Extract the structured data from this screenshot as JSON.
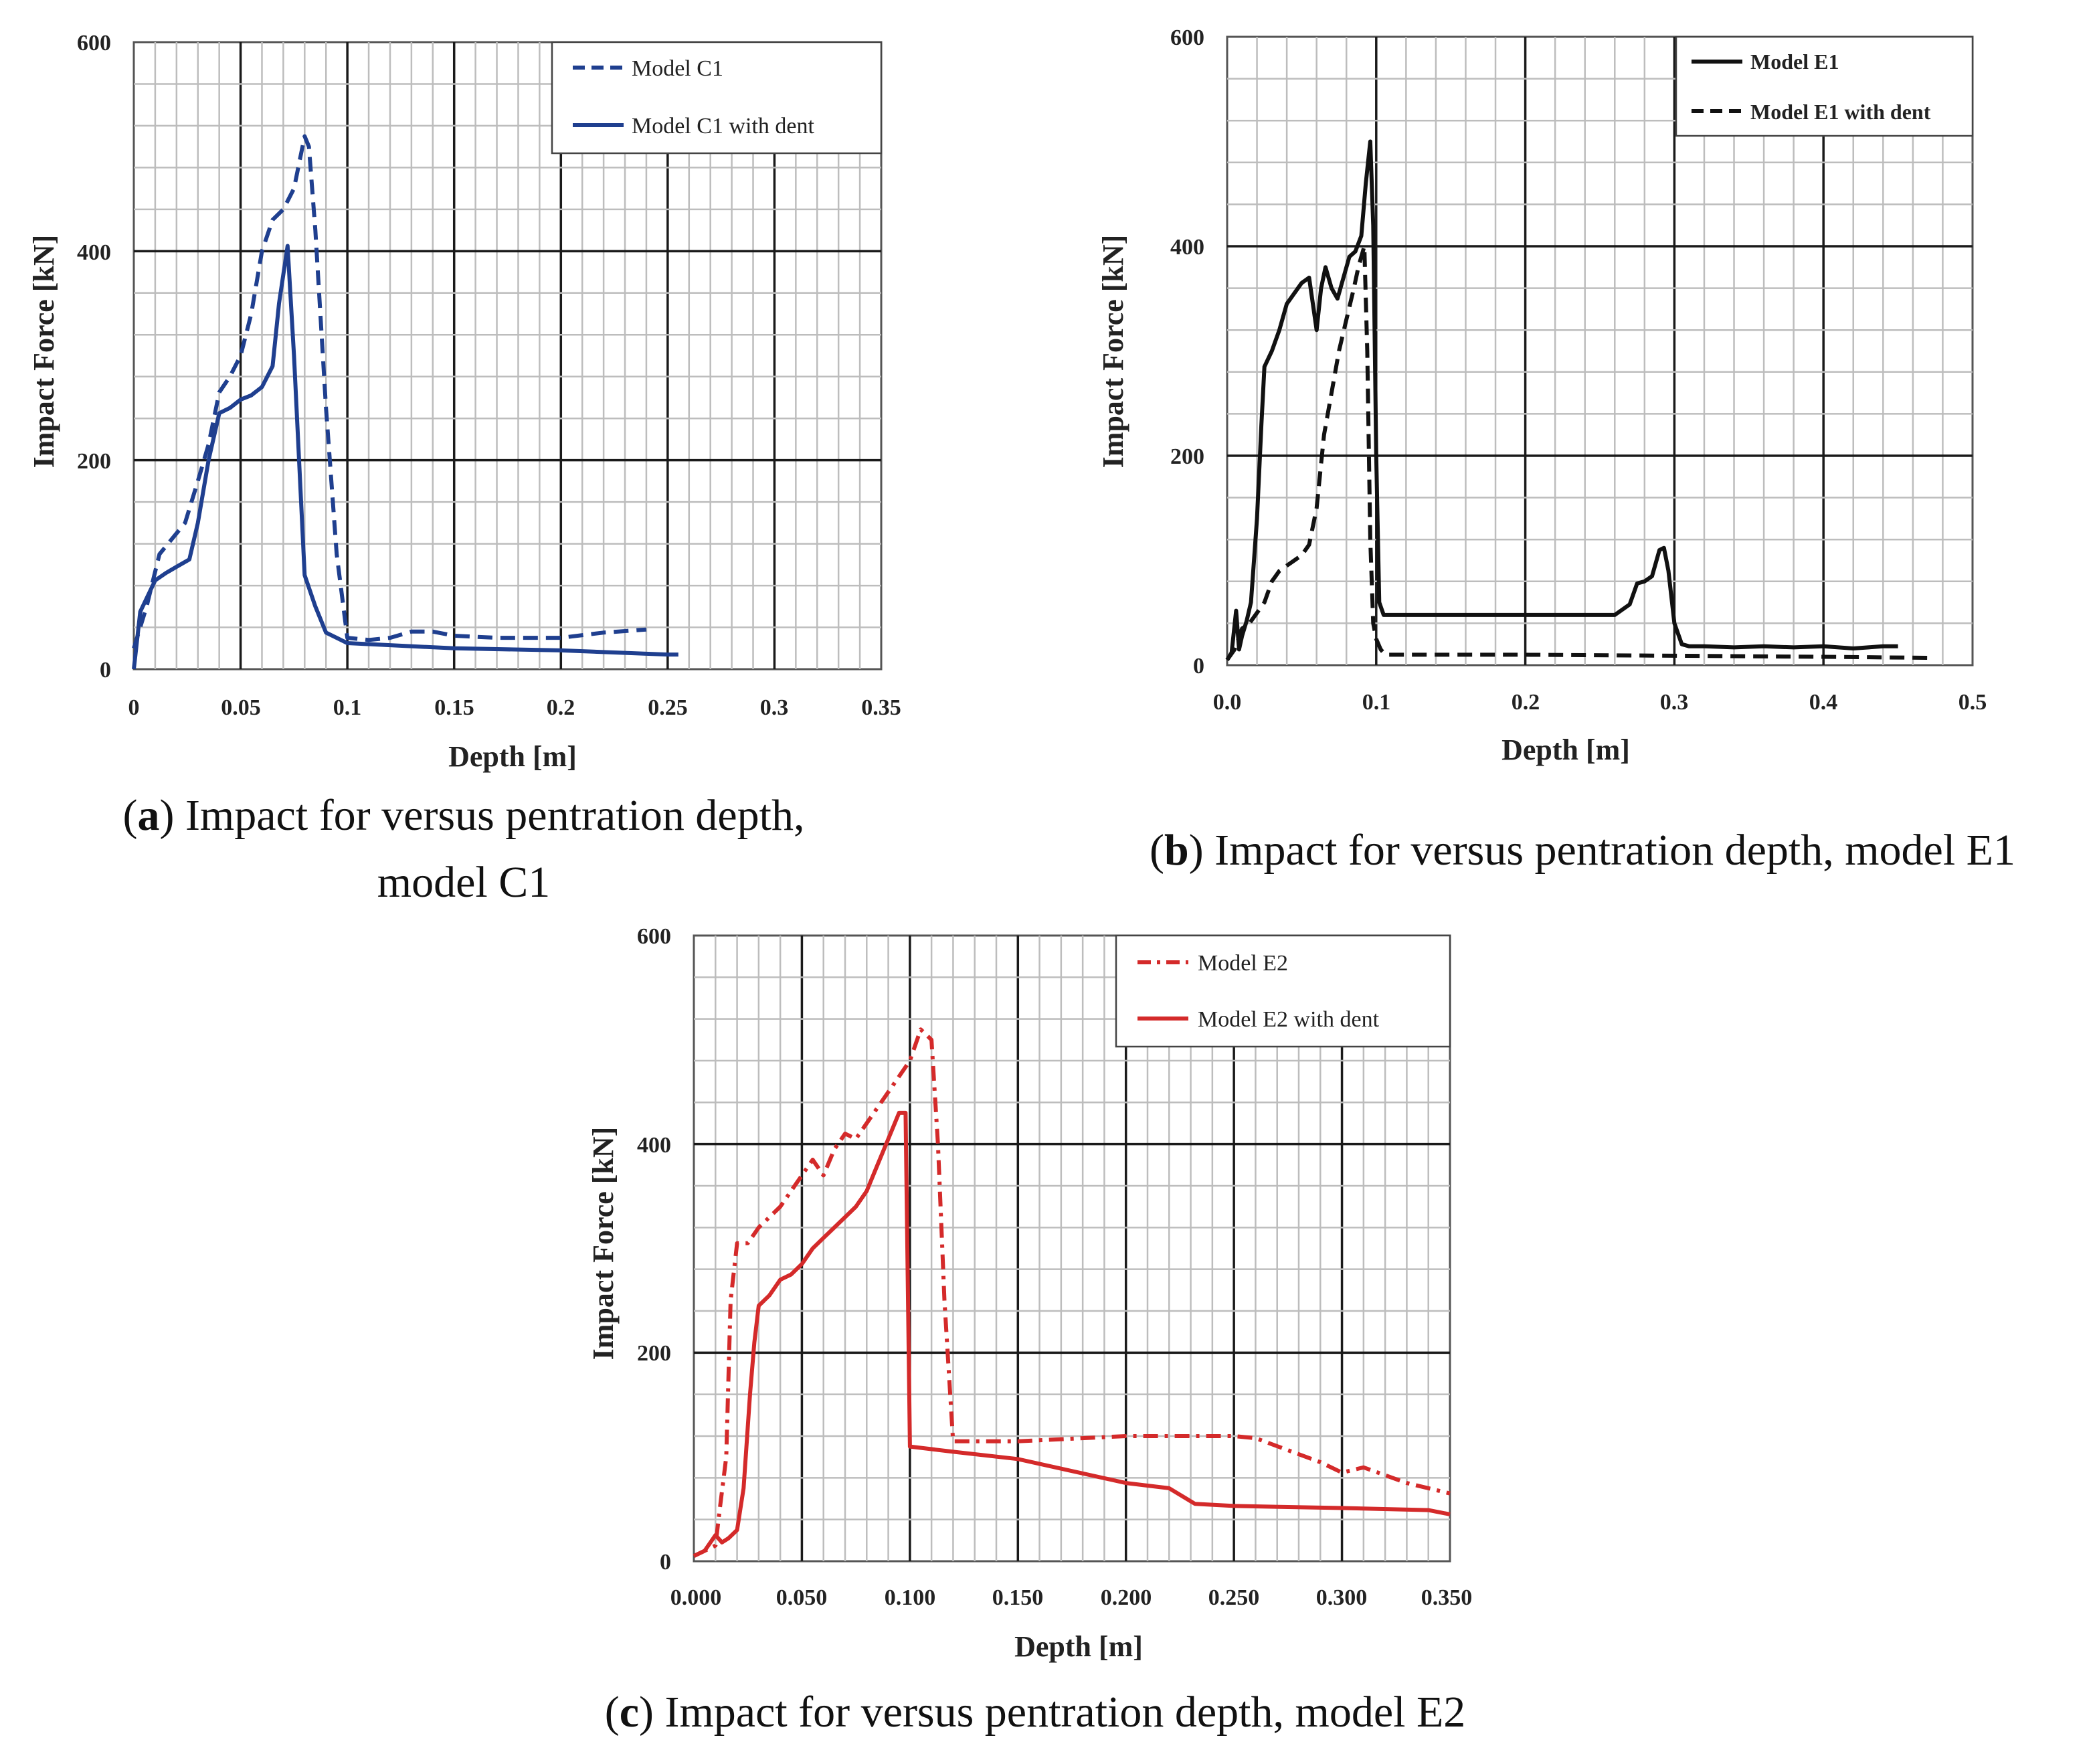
{
  "colors": {
    "blue": "#1f3f8f",
    "black": "#111111",
    "red": "#d42a2a"
  },
  "chart_data": [
    {
      "id": "a",
      "type": "line",
      "xlabel": "Depth [m]",
      "ylabel": "Impact Force [kN]",
      "xlim": [
        0,
        0.35
      ],
      "ylim": [
        0,
        600
      ],
      "xticks": [
        0,
        0.05,
        0.1,
        0.15,
        0.2,
        0.25,
        0.3,
        0.35
      ],
      "xtick_labels": [
        "0",
        "0.05",
        "0.1",
        "0.15",
        "0.2",
        "0.25",
        "0.3",
        "0.35"
      ],
      "yticks": [
        0,
        200,
        400,
        600
      ],
      "ytick_labels": [
        "0",
        "200",
        "400",
        "600"
      ],
      "x_minor": 0.01,
      "y_minor": 40,
      "x_major": 0.05,
      "y_major": 200,
      "legend": "top-right",
      "caption": {
        "letter": "a",
        "text": ") Impact for versus pentration depth,",
        "line2": "model C1"
      },
      "series": [
        {
          "name": "Model C1",
          "color": "#1f3f8f",
          "style": "dash",
          "x": [
            0,
            0.006,
            0.012,
            0.018,
            0.024,
            0.03,
            0.035,
            0.04,
            0.045,
            0.05,
            0.055,
            0.06,
            0.065,
            0.07,
            0.075,
            0.078,
            0.08,
            0.082,
            0.085,
            0.09,
            0.095,
            0.1,
            0.11,
            0.12,
            0.13,
            0.14,
            0.15,
            0.17,
            0.2,
            0.22,
            0.24
          ],
          "y": [
            20,
            60,
            110,
            125,
            140,
            180,
            215,
            265,
            280,
            300,
            340,
            400,
            430,
            440,
            460,
            490,
            510,
            500,
            420,
            250,
            110,
            30,
            28,
            30,
            36,
            36,
            32,
            30,
            30,
            35,
            38
          ]
        },
        {
          "name": "Model C1 with dent",
          "color": "#1f3f8f",
          "style": "solid",
          "x": [
            0,
            0.003,
            0.01,
            0.015,
            0.02,
            0.026,
            0.03,
            0.035,
            0.04,
            0.045,
            0.05,
            0.055,
            0.06,
            0.065,
            0.068,
            0.072,
            0.075,
            0.08,
            0.085,
            0.09,
            0.1,
            0.12,
            0.15,
            0.2,
            0.25,
            0.255
          ],
          "y": [
            0,
            55,
            85,
            92,
            98,
            105,
            140,
            200,
            245,
            250,
            258,
            262,
            270,
            290,
            350,
            405,
            300,
            90,
            60,
            35,
            25,
            23,
            20,
            18,
            14,
            14
          ]
        }
      ]
    },
    {
      "id": "b",
      "type": "line",
      "xlabel": "Depth [m]",
      "ylabel": "Impact Force [kN]",
      "xlim": [
        0,
        0.5
      ],
      "ylim": [
        0,
        600
      ],
      "xticks": [
        0,
        0.1,
        0.2,
        0.3,
        0.4,
        0.5
      ],
      "xtick_labels": [
        "0.0",
        "0.1",
        "0.2",
        "0.3",
        "0.4",
        "0.5"
      ],
      "yticks": [
        0,
        200,
        400,
        600
      ],
      "ytick_labels": [
        "0",
        "200",
        "400",
        "600"
      ],
      "x_minor": 0.02,
      "y_minor": 40,
      "x_major": 0.1,
      "y_major": 200,
      "legend": "top-right",
      "caption": {
        "letter": "b",
        "text": ") Impact for versus pentration depth, model E1"
      },
      "series": [
        {
          "name": "Model E1",
          "color": "#111111",
          "style": "solid",
          "x": [
            0,
            0.003,
            0.006,
            0.008,
            0.01,
            0.013,
            0.016,
            0.02,
            0.023,
            0.025,
            0.03,
            0.035,
            0.04,
            0.045,
            0.05,
            0.055,
            0.06,
            0.063,
            0.066,
            0.07,
            0.074,
            0.078,
            0.082,
            0.086,
            0.09,
            0.093,
            0.096,
            0.098,
            0.1,
            0.102,
            0.105,
            0.11,
            0.15,
            0.2,
            0.26,
            0.27,
            0.275,
            0.28,
            0.285,
            0.29,
            0.293,
            0.296,
            0.3,
            0.305,
            0.31,
            0.32,
            0.34,
            0.36,
            0.38,
            0.4,
            0.42,
            0.44,
            0.45
          ],
          "y": [
            5,
            12,
            52,
            15,
            28,
            42,
            60,
            140,
            230,
            285,
            300,
            320,
            345,
            355,
            365,
            370,
            320,
            360,
            380,
            360,
            350,
            370,
            390,
            395,
            410,
            460,
            500,
            420,
            200,
            60,
            48,
            48,
            48,
            48,
            48,
            58,
            78,
            80,
            85,
            110,
            112,
            90,
            40,
            20,
            18,
            18,
            17,
            18,
            17,
            18,
            16,
            18,
            18
          ]
        },
        {
          "name": "Model E1 with dent",
          "color": "#111111",
          "style": "dash",
          "x": [
            0,
            0.005,
            0.01,
            0.015,
            0.02,
            0.025,
            0.03,
            0.035,
            0.04,
            0.045,
            0.05,
            0.055,
            0.06,
            0.065,
            0.07,
            0.075,
            0.08,
            0.085,
            0.088,
            0.09,
            0.092,
            0.094,
            0.096,
            0.098,
            0.1,
            0.103,
            0.106,
            0.11,
            0.2,
            0.3,
            0.4,
            0.47
          ],
          "y": [
            5,
            15,
            35,
            40,
            50,
            60,
            80,
            90,
            95,
            100,
            105,
            115,
            150,
            220,
            260,
            300,
            330,
            360,
            380,
            390,
            400,
            300,
            120,
            40,
            25,
            15,
            10,
            10,
            10,
            9,
            8,
            7
          ]
        }
      ]
    },
    {
      "id": "c",
      "type": "line",
      "xlabel": "Depth [m]",
      "ylabel": "Impact Force [kN]",
      "xlim": [
        0,
        0.35
      ],
      "ylim": [
        0,
        600
      ],
      "xticks": [
        0,
        0.05,
        0.1,
        0.15,
        0.2,
        0.25,
        0.3,
        0.35
      ],
      "xtick_labels": [
        "0.000",
        "0.050",
        "0.100",
        "0.150",
        "0.200",
        "0.250",
        "0.300",
        "0.350"
      ],
      "yticks": [
        0,
        200,
        400,
        600
      ],
      "ytick_labels": [
        "0",
        "200",
        "400",
        "600"
      ],
      "x_minor": 0.01,
      "y_minor": 40,
      "x_major": 0.05,
      "y_major": 200,
      "legend": "top-right",
      "caption": {
        "letter": "c",
        "text": ") Impact for versus pentration depth, model E2"
      },
      "series": [
        {
          "name": "Model E2",
          "color": "#d42a2a",
          "style": "dashdot",
          "x": [
            0,
            0.005,
            0.01,
            0.012,
            0.015,
            0.017,
            0.02,
            0.025,
            0.03,
            0.04,
            0.05,
            0.055,
            0.06,
            0.065,
            0.07,
            0.075,
            0.08,
            0.09,
            0.1,
            0.105,
            0.11,
            0.113,
            0.116,
            0.12,
            0.13,
            0.15,
            0.2,
            0.25,
            0.26,
            0.29,
            0.3,
            0.31,
            0.33,
            0.35
          ],
          "y": [
            5,
            10,
            15,
            50,
            100,
            250,
            305,
            305,
            320,
            340,
            370,
            385,
            370,
            395,
            410,
            405,
            420,
            450,
            480,
            510,
            500,
            400,
            250,
            115,
            115,
            115,
            120,
            120,
            118,
            95,
            85,
            90,
            75,
            65
          ]
        },
        {
          "name": "Model E2 with dent",
          "color": "#d42a2a",
          "style": "solid",
          "x": [
            0,
            0.005,
            0.01,
            0.013,
            0.016,
            0.02,
            0.023,
            0.026,
            0.028,
            0.03,
            0.035,
            0.04,
            0.045,
            0.05,
            0.055,
            0.06,
            0.065,
            0.07,
            0.075,
            0.08,
            0.085,
            0.09,
            0.095,
            0.098,
            0.1,
            0.12,
            0.15,
            0.2,
            0.22,
            0.232,
            0.25,
            0.3,
            0.34,
            0.35
          ],
          "y": [
            5,
            10,
            25,
            18,
            22,
            30,
            70,
            160,
            210,
            245,
            255,
            270,
            275,
            285,
            300,
            310,
            320,
            330,
            340,
            355,
            380,
            405,
            430,
            430,
            110,
            105,
            98,
            75,
            70,
            55,
            53,
            51,
            49,
            45
          ]
        }
      ]
    }
  ]
}
